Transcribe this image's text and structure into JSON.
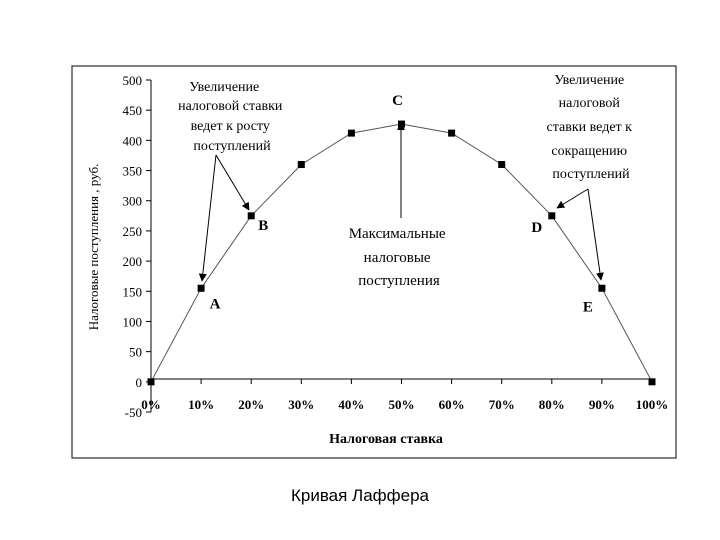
{
  "caption": "Кривая Лаффера",
  "chart_data": {
    "type": "line",
    "xlabel": "Налоговая ставка",
    "ylabel": "Налоговые поступления , руб.",
    "x": [
      "0%",
      "10%",
      "20%",
      "30%",
      "40%",
      "50%",
      "60%",
      "70%",
      "80%",
      "90%",
      "100%"
    ],
    "x_values": [
      0,
      10,
      20,
      30,
      40,
      50,
      60,
      70,
      80,
      90,
      100
    ],
    "y": [
      0,
      155,
      275,
      360,
      412,
      427,
      412,
      360,
      275,
      155,
      0
    ],
    "ylim": [
      -50,
      500
    ],
    "yticks": [
      -50,
      0,
      50,
      100,
      150,
      200,
      250,
      300,
      350,
      400,
      450,
      500
    ],
    "grid": false,
    "point_labels": [
      {
        "label": "A",
        "x": 10
      },
      {
        "label": "B",
        "x": 20
      },
      {
        "label": "C",
        "x": 50
      },
      {
        "label": "D",
        "x": 80
      },
      {
        "label": "E",
        "x": 90
      }
    ],
    "annotations": [
      {
        "lines": [
          "Увеличение",
          "налоговой ставки",
          "ведет к росту",
          "поступлений"
        ]
      },
      {
        "lines": [
          "Максимальные",
          "налоговые",
          "поступления"
        ]
      },
      {
        "lines": [
          "Увеличение",
          "налоговой",
          "ставки ведет к",
          "сокращению",
          "поступлений"
        ]
      }
    ]
  }
}
